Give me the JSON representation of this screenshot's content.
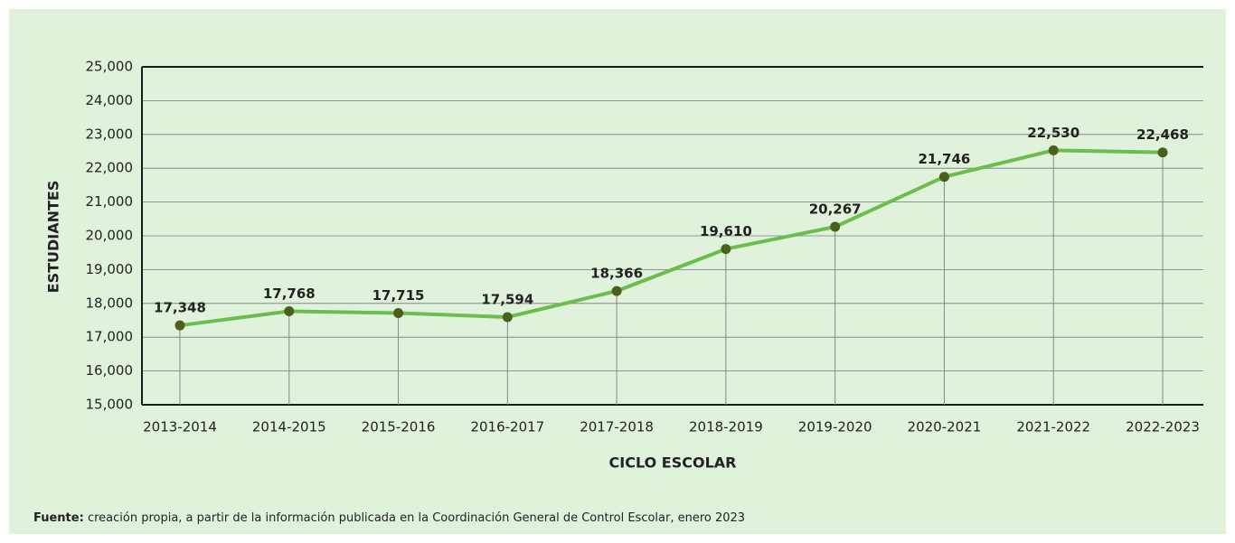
{
  "chart_data": {
    "type": "line",
    "y_label": "ESTUDIANTES",
    "x_label": "CICLO ESCOLAR",
    "categories": [
      "2013-2014",
      "2014-2015",
      "2015-2016",
      "2016-2017",
      "2017-2018",
      "2018-2019",
      "2019-2020",
      "2020-2021",
      "2021-2022",
      "2022-2023"
    ],
    "series": [
      {
        "name": "Estudiantes",
        "color": "#6bbd4c",
        "marker_color": "#4b5e1e",
        "values": [
          17348,
          17768,
          17715,
          17594,
          18366,
          19610,
          20267,
          21746,
          22530,
          22468
        ],
        "value_labels": [
          "17,348",
          "17,768",
          "17,715",
          "17,594",
          "18,366",
          "19,610",
          "20,267",
          "21,746",
          "22,530",
          "22,468"
        ]
      }
    ],
    "ylim": [
      15000,
      25000
    ],
    "yticks": [
      {
        "value": 15000,
        "label": "15,000"
      },
      {
        "value": 16000,
        "label": "16,000"
      },
      {
        "value": 17000,
        "label": "17,000"
      },
      {
        "value": 18000,
        "label": "18,000"
      },
      {
        "value": 19000,
        "label": "19,000"
      },
      {
        "value": 20000,
        "label": "20,000"
      },
      {
        "value": 21000,
        "label": "21,000"
      },
      {
        "value": 22000,
        "label": "22,000"
      },
      {
        "value": 23000,
        "label": "23,000"
      },
      {
        "value": 24000,
        "label": "24,000"
      },
      {
        "value": 25000,
        "label": "25,000"
      }
    ],
    "grid": true
  },
  "source": {
    "label": "Fuente:",
    "text": "creación propia, a partir de la información publicada en la Coordinación General de Control Escolar, enero 2023"
  }
}
